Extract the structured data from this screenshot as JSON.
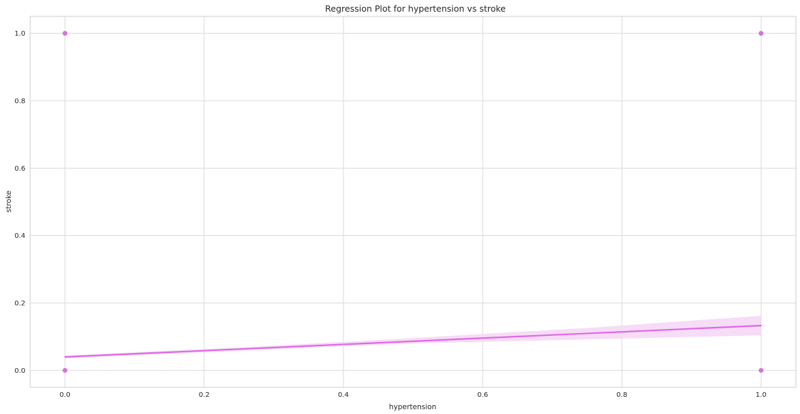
{
  "chart_data": {
    "type": "scatter",
    "title": "Regression Plot for hypertension vs stroke",
    "xlabel": "hypertension",
    "ylabel": "stroke",
    "xlim": [
      -0.05,
      1.05
    ],
    "ylim": [
      -0.05,
      1.05
    ],
    "xticks": [
      0.0,
      0.2,
      0.4,
      0.6,
      0.8,
      1.0
    ],
    "yticks": [
      0.0,
      0.2,
      0.4,
      0.6,
      0.8,
      1.0
    ],
    "xtick_labels": [
      "0.0",
      "0.2",
      "0.4",
      "0.6",
      "0.8",
      "1.0"
    ],
    "ytick_labels": [
      "0.0",
      "0.2",
      "0.4",
      "0.6",
      "0.8",
      "1.0"
    ],
    "grid": true,
    "points": [
      {
        "x": 0,
        "y": 0
      },
      {
        "x": 0,
        "y": 1
      },
      {
        "x": 1,
        "y": 0
      },
      {
        "x": 1,
        "y": 1
      }
    ],
    "regression_line": {
      "x": [
        0,
        1
      ],
      "y": [
        0.04,
        0.133
      ]
    },
    "confidence_band": {
      "x": [
        0,
        0.25,
        0.5,
        0.75,
        1
      ],
      "lower": [
        0.036,
        0.058,
        0.08,
        0.092,
        0.104
      ],
      "upper": [
        0.044,
        0.068,
        0.096,
        0.126,
        0.162
      ]
    },
    "colors": {
      "line": "#e066e6",
      "points": "#d266d9",
      "band": "#f5d6f5",
      "grid": "#d9d9d9",
      "spine": "#cccccc"
    }
  }
}
